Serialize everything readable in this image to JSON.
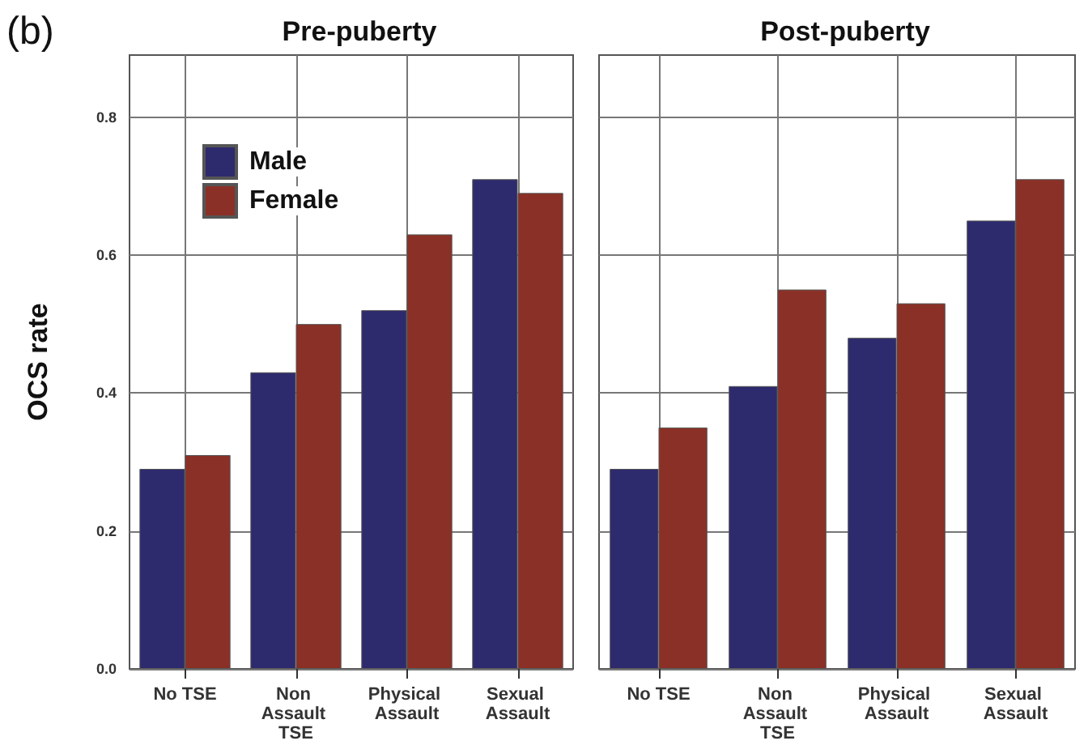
{
  "chart_data": [
    {
      "type": "bar",
      "title": "Pre-puberty",
      "ylabel": "OCS rate",
      "annotations": [
        "(b)"
      ],
      "categories": [
        "No TSE",
        "Non Assault TSE",
        "Physical Assault",
        "Sexual Assault"
      ],
      "series": [
        {
          "name": "Male",
          "color": "#2e2a6e",
          "values": [
            0.29,
            0.43,
            0.52,
            0.71
          ]
        },
        {
          "name": "Female",
          "color": "#8b3026",
          "values": [
            0.31,
            0.5,
            0.63,
            0.69
          ]
        }
      ],
      "ylim": [
        0,
        0.89
      ],
      "yticks": [
        {
          "value": 0,
          "label": "0.0"
        },
        0.2,
        0.4,
        0.6,
        0.8
      ],
      "grid": true,
      "legend": "top left"
    },
    {
      "type": "bar",
      "title": "Post-puberty",
      "categories": [
        "No TSE",
        "Non Assault TSE",
        "Physical Assault",
        "Sexual Assault"
      ],
      "series": [
        {
          "color": "#2e2a6e",
          "values": [
            0.29,
            0.41,
            0.48,
            0.65
          ]
        },
        {
          "color": "#8b3026",
          "values": [
            0.35,
            0.55,
            0.53,
            0.71
          ]
        }
      ],
      "ylim": [
        0,
        0.89
      ],
      "yticks": [
        {
          "value": 0,
          "label": null
        },
        {
          "value": 0.2,
          "label": null
        },
        {
          "value": 0.4,
          "label": null
        },
        {
          "value": 0.6,
          "label": null
        },
        {
          "value": 0.8,
          "label": null
        }
      ],
      "grid": true,
      "tick_labels": "x"
    }
  ]
}
